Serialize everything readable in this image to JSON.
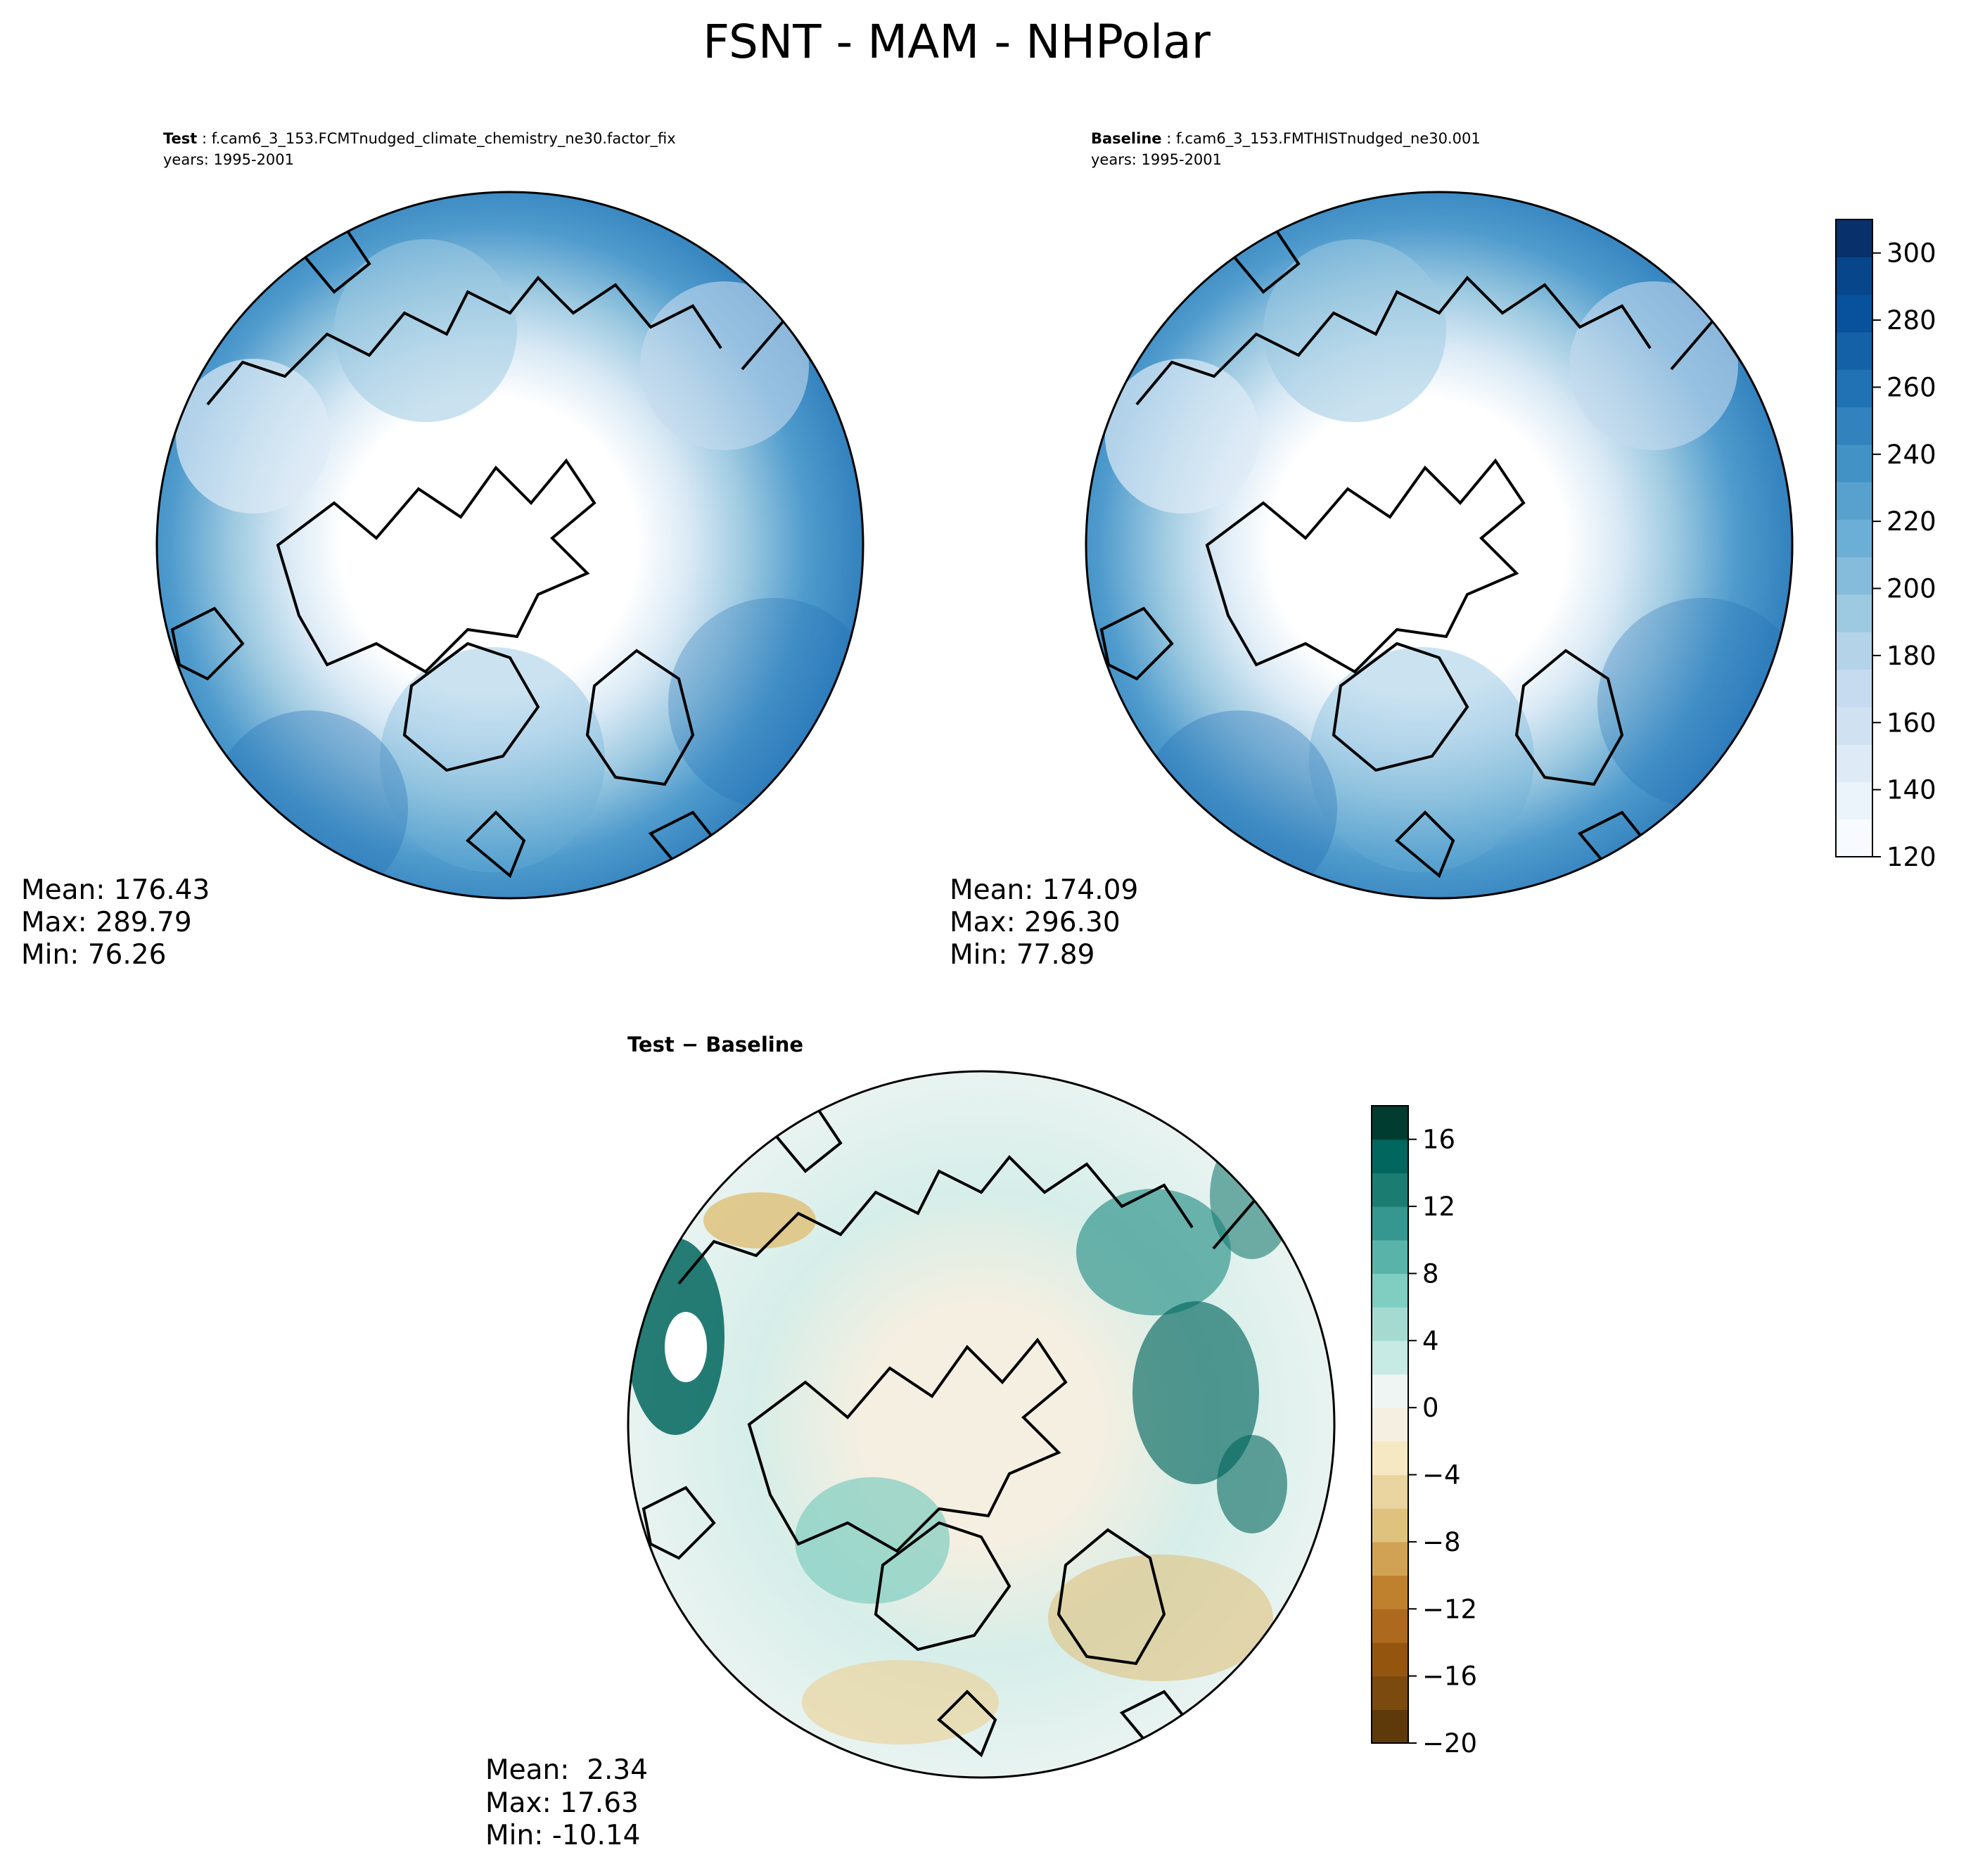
{
  "figure": {
    "title": "FSNT - MAM - NHPolar"
  },
  "panels": {
    "test": {
      "label": "Test",
      "case": "f.cam6_3_153.FCMTnudged_climate_chemistry_ne30.factor_fix",
      "years": "years: 1995-2001",
      "stats": {
        "mean": "Mean: 176.43",
        "max": "Max: 289.79",
        "min": "Min: 76.26"
      }
    },
    "baseline": {
      "label": "Baseline",
      "case": "f.cam6_3_153.FMTHISTnudged_ne30.001",
      "years": "years: 1995-2001",
      "stats": {
        "mean": "Mean: 174.09",
        "max": "Max: 296.30",
        "min": "Min: 77.89"
      }
    },
    "diff": {
      "title": "Test − Baseline",
      "stats": {
        "mean": "Mean:  2.34",
        "max": "Max: 17.63",
        "min": "Min: -10.14"
      }
    }
  },
  "colorbars": {
    "main": {
      "colormap": "Blues",
      "range": [
        120,
        310
      ],
      "ticks": [
        "120",
        "140",
        "160",
        "180",
        "200",
        "220",
        "240",
        "260",
        "280",
        "300"
      ],
      "colors": [
        "#f7fbff",
        "#ebf3fb",
        "#deebf7",
        "#d0e2f2",
        "#c6dbef",
        "#b4d3e8",
        "#9ecae1",
        "#85bcdc",
        "#6baed6",
        "#58a1cf",
        "#4292c6",
        "#3282be",
        "#2171b5",
        "#1461a8",
        "#08519c",
        "#08468b",
        "#08306b"
      ]
    },
    "diff": {
      "colormap": "BrBG",
      "range": [
        -20,
        18
      ],
      "ticks": [
        "−20",
        "−16",
        "−12",
        "−8",
        "−4",
        "0",
        "4",
        "8",
        "12",
        "16"
      ],
      "colors": [
        "#5e3a0b",
        "#7a4a0e",
        "#94560f",
        "#ad6a1f",
        "#bf812d",
        "#d1a154",
        "#dfc27d",
        "#ead49f",
        "#f6e8c3",
        "#f5efe1",
        "#eef5f3",
        "#c7eae5",
        "#a5dad1",
        "#80cdc1",
        "#5ab3a8",
        "#35978f",
        "#1b7c72",
        "#01665e",
        "#003c30"
      ]
    }
  },
  "map_fields": {
    "base_color": "#3f8fc6",
    "polar_color": "#ffffff",
    "diff_base_color": "#f5efe1",
    "coast_color": "#000000"
  }
}
